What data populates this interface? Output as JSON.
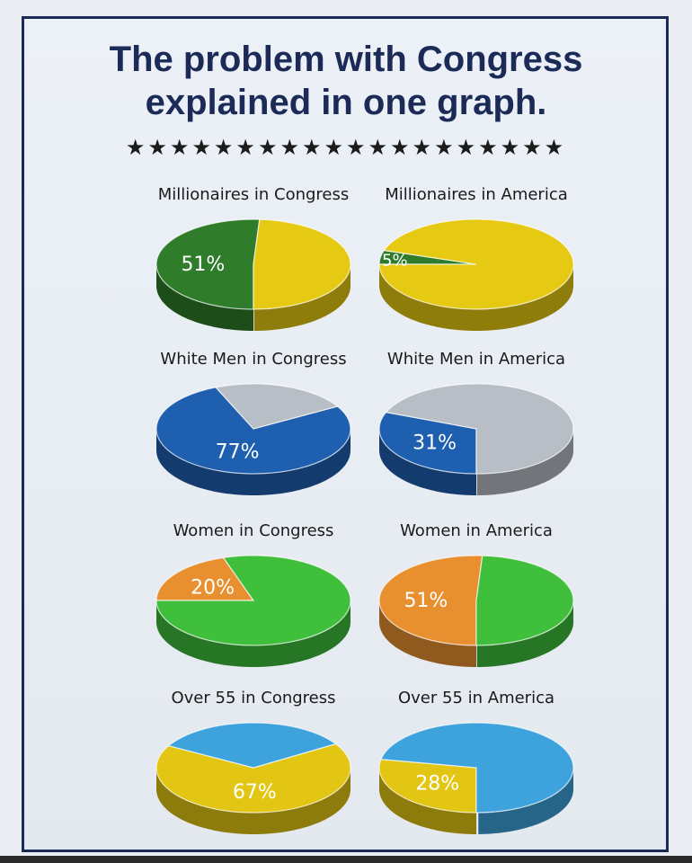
{
  "header": {
    "title_line1": "The problem with Congress",
    "title_line2": "explained in one graph.",
    "stars": "★★★★★★★★★★★★★★★★★★★★"
  },
  "chart_data": [
    {
      "type": "pie",
      "title": "Millionaires in Congress",
      "slices": [
        {
          "value": 51,
          "label": "51%",
          "color": "#2f7d2a"
        },
        {
          "value": 49,
          "label": "",
          "color": "#e6c912"
        }
      ]
    },
    {
      "type": "pie",
      "title": "Millionaires in America",
      "slices": [
        {
          "value": 5,
          "label": "5%",
          "color": "#2f7d2a"
        },
        {
          "value": 95,
          "label": "",
          "color": "#e6c912"
        }
      ]
    },
    {
      "type": "pie",
      "title": "White Men in Congress",
      "slices": [
        {
          "value": 77,
          "label": "77%",
          "color": "#1f5fb0"
        },
        {
          "value": 23,
          "label": "",
          "color": "#b8bec6"
        }
      ]
    },
    {
      "type": "pie",
      "title": "White Men in America",
      "slices": [
        {
          "value": 31,
          "label": "31%",
          "color": "#1f5fb0"
        },
        {
          "value": 69,
          "label": "",
          "color": "#b8bec6"
        }
      ]
    },
    {
      "type": "pie",
      "title": "Women in Congress",
      "slices": [
        {
          "value": 20,
          "label": "20%",
          "color": "#e8902f"
        },
        {
          "value": 80,
          "label": "",
          "color": "#3fbf3b"
        }
      ]
    },
    {
      "type": "pie",
      "title": "Women in America",
      "slices": [
        {
          "value": 51,
          "label": "51%",
          "color": "#e8902f"
        },
        {
          "value": 49,
          "label": "",
          "color": "#3fbf3b"
        }
      ]
    },
    {
      "type": "pie",
      "title": "Over 55 in Congress",
      "slices": [
        {
          "value": 67,
          "label": "67%",
          "color": "#e3c614"
        },
        {
          "value": 33,
          "label": "",
          "color": "#3ea3dc"
        }
      ]
    },
    {
      "type": "pie",
      "title": "Over 55 in America",
      "slices": [
        {
          "value": 28,
          "label": "28%",
          "color": "#e3c614"
        },
        {
          "value": 72,
          "label": "",
          "color": "#3ea3dc"
        }
      ]
    }
  ]
}
